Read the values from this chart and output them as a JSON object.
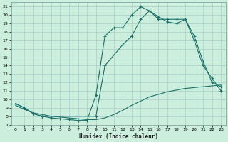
{
  "title": "",
  "xlabel": "Humidex (Indice chaleur)",
  "xlim": [
    -0.5,
    23.5
  ],
  "ylim": [
    7,
    21.5
  ],
  "xticks": [
    0,
    1,
    2,
    3,
    4,
    5,
    6,
    7,
    8,
    9,
    10,
    11,
    12,
    13,
    14,
    15,
    16,
    17,
    18,
    19,
    20,
    21,
    22,
    23
  ],
  "yticks": [
    7,
    8,
    9,
    10,
    11,
    12,
    13,
    14,
    15,
    16,
    17,
    18,
    19,
    20,
    21
  ],
  "bg_color": "#cceedd",
  "line_color": "#1a7068",
  "grid_color": "#aacccc",
  "line1_x": [
    0,
    1,
    2,
    3,
    4,
    5,
    6,
    7,
    8,
    9,
    10,
    11,
    12,
    13,
    14,
    15,
    16,
    17,
    18,
    19,
    20,
    21,
    22,
    23
  ],
  "line1_y": [
    9.5,
    9.0,
    8.3,
    8.0,
    7.8,
    7.7,
    7.6,
    7.5,
    7.5,
    10.5,
    17.5,
    18.5,
    18.5,
    20.0,
    21.0,
    20.5,
    19.5,
    19.5,
    19.5,
    19.5,
    17.0,
    14.0,
    12.5,
    11.0
  ],
  "line2_x": [
    0,
    1,
    2,
    3,
    4,
    5,
    6,
    7,
    8,
    9,
    10,
    11,
    12,
    13,
    14,
    15,
    16,
    17,
    18,
    19,
    20,
    21,
    22,
    23
  ],
  "line2_y": [
    9.3,
    8.8,
    8.4,
    8.2,
    8.0,
    7.9,
    7.8,
    7.7,
    7.6,
    7.6,
    7.8,
    8.2,
    8.7,
    9.3,
    9.8,
    10.3,
    10.6,
    10.9,
    11.1,
    11.3,
    11.4,
    11.5,
    11.6,
    11.7
  ],
  "line3_x": [
    0,
    1,
    2,
    3,
    9,
    10,
    12,
    13,
    14,
    15,
    16,
    17,
    18,
    19,
    20,
    21,
    22,
    23
  ],
  "line3_y": [
    9.5,
    9.0,
    8.3,
    8.0,
    8.0,
    14.0,
    16.5,
    17.5,
    19.5,
    20.5,
    19.8,
    19.2,
    19.0,
    19.5,
    17.5,
    14.5,
    12.0,
    11.5
  ]
}
